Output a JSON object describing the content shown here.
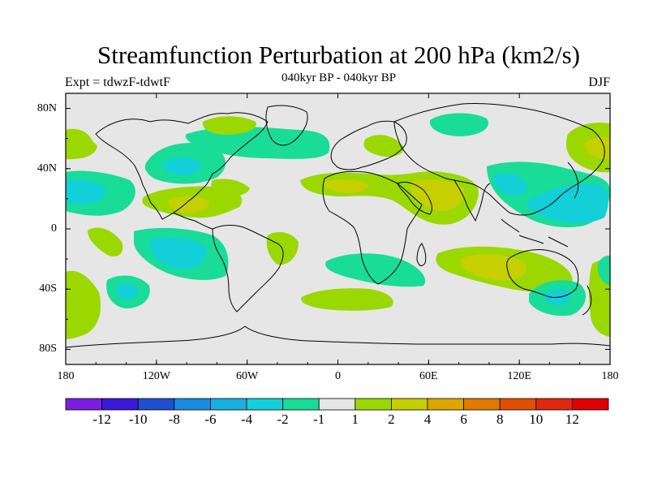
{
  "title": "Streamfunction Perturbation at 200 hPa (km2/s)",
  "subtitle": "040kyr BP - 040kyr BP",
  "expt_label": "Expt = tdwzF-tdwtF",
  "season_label": "DJF",
  "lat_ticks": [
    {
      "label": "80N",
      "lat": 80
    },
    {
      "label": "40N",
      "lat": 40
    },
    {
      "label": "0",
      "lat": 0
    },
    {
      "label": "40S",
      "lat": -40
    },
    {
      "label": "80S",
      "lat": -80
    }
  ],
  "lon_ticks": [
    {
      "label": "180",
      "lon": -180
    },
    {
      "label": "120W",
      "lon": -120
    },
    {
      "label": "60W",
      "lon": -60
    },
    {
      "label": "0",
      "lon": 0
    },
    {
      "label": "60E",
      "lon": 60
    },
    {
      "label": "120E",
      "lon": 120
    },
    {
      "label": "180",
      "lon": 180
    }
  ],
  "colorbar": {
    "colors": [
      "#7a1fe0",
      "#3a18d8",
      "#1f50d0",
      "#1a8ce0",
      "#18b0e0",
      "#13cfd8",
      "#18dc98",
      "#e6e6e6",
      "#9ad800",
      "#c6cf00",
      "#dca800",
      "#e07a00",
      "#e05000",
      "#e02810",
      "#e00000"
    ],
    "labels": [
      "-12",
      "-10",
      "-8",
      "-6",
      "-4",
      "-2",
      "-1",
      "1",
      "2",
      "4",
      "6",
      "8",
      "10",
      "12"
    ]
  },
  "chart_data": {
    "type": "heatmap",
    "map_type": "filled contour map, global equirectangular projection",
    "variable": "Streamfunction perturbation at 200 hPa",
    "units": "km2/s",
    "season": "DJF",
    "levels": [
      -12,
      -10,
      -8,
      -6,
      -4,
      -2,
      -1,
      1,
      2,
      4,
      6,
      8,
      10,
      12
    ],
    "lon_range": [
      -180,
      180
    ],
    "lat_range": [
      -90,
      90
    ],
    "regions": [
      {
        "name": "N Atlantic / N America positive",
        "center_lon": -75,
        "center_lat": 60,
        "value": 1.5
      },
      {
        "name": "NE Pacific negative",
        "center_lon": -140,
        "center_lat": 50,
        "value": -1.5
      },
      {
        "name": "N America negative",
        "center_lon": -105,
        "center_lat": 45,
        "value": -2.5
      },
      {
        "name": "Atlantic / Europe negative",
        "center_lon": -30,
        "center_lat": 55,
        "value": -1.5
      },
      {
        "name": "Arctic N Europe negative",
        "center_lon": 30,
        "center_lat": 75,
        "value": -1.5
      },
      {
        "name": "Siberia negative",
        "center_lon": 100,
        "center_lat": 52,
        "value": -2
      },
      {
        "name": "E Pacific tropical negative",
        "center_lon": -165,
        "center_lat": 25,
        "value": -4
      },
      {
        "name": "Mexico / Caribbean positive",
        "center_lon": -95,
        "center_lat": 15,
        "value": 3
      },
      {
        "name": "N Africa / Middle East positive",
        "center_lon": 50,
        "center_lat": 20,
        "value": 3
      },
      {
        "name": "E Asia / W Pacific negative",
        "center_lon": 130,
        "center_lat": 20,
        "value": -4
      },
      {
        "name": "NE Pacific positive",
        "center_lon": 165,
        "center_lat": 60,
        "value": 3
      },
      {
        "name": "E Pacific south negative",
        "center_lon": -105,
        "center_lat": -15,
        "value": -3.5
      },
      {
        "name": "S Pacific negative",
        "center_lon": -145,
        "center_lat": -40,
        "value": -3
      },
      {
        "name": "S Atlantic negative",
        "center_lon": 20,
        "center_lat": -28,
        "value": -1.5
      },
      {
        "name": "S Indian / Australia positive",
        "center_lon": 100,
        "center_lat": -33,
        "value": 3
      },
      {
        "name": "S Ocean negative",
        "center_lon": 150,
        "center_lat": -45,
        "value": -3
      },
      {
        "name": "S Atlantic midlat positive",
        "center_lon": 20,
        "center_lat": -47,
        "value": 1.5
      }
    ]
  }
}
